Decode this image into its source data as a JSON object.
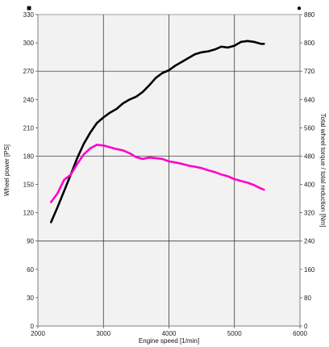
{
  "chart_data": {
    "type": "line",
    "title": "",
    "xlabel": "Engine speed [1/min]",
    "ylabel": "Wheel power [PS]",
    "y2label": "Total wheel torque / total reduction [Nm]",
    "xlim": [
      2000,
      6000
    ],
    "ylim": [
      0,
      330
    ],
    "y2lim": [
      0,
      880
    ],
    "xticks": [
      "2000",
      "3000",
      "4000",
      "5000",
      "6000"
    ],
    "yticks": [
      "0",
      "30",
      "60",
      "90",
      "120",
      "150",
      "180",
      "210",
      "240",
      "270",
      "300",
      "330"
    ],
    "y2ticks": [
      "0",
      "80",
      "160",
      "240",
      "320",
      "400",
      "480",
      "560",
      "640",
      "720",
      "800",
      "880"
    ],
    "grid": true,
    "legend": "none",
    "series": [
      {
        "axis": "left",
        "color": "#000000",
        "x": [
          2200,
          2300,
          2400,
          2500,
          2600,
          2700,
          2800,
          2900,
          3000,
          3100,
          3200,
          3300,
          3400,
          3500,
          3600,
          3700,
          3800,
          3900,
          4000,
          4100,
          4200,
          4300,
          4400,
          4500,
          4600,
          4700,
          4800,
          4900,
          5000,
          5100,
          5200,
          5300,
          5400,
          5450
        ],
        "values": [
          110,
          126,
          143,
          160,
          178,
          193,
          205,
          215,
          221,
          226,
          230,
          236,
          240,
          243,
          248,
          255,
          263,
          268,
          271,
          276,
          280,
          284,
          288,
          290,
          291,
          293,
          296,
          295,
          297,
          301,
          302,
          301,
          299,
          299
        ]
      },
      {
        "axis": "right",
        "color": "#ff00c8",
        "x": [
          2200,
          2300,
          2400,
          2500,
          2600,
          2700,
          2800,
          2900,
          3000,
          3100,
          3200,
          3300,
          3400,
          3500,
          3600,
          3700,
          3800,
          3900,
          4000,
          4100,
          4200,
          4300,
          4400,
          4500,
          4600,
          4700,
          4800,
          4900,
          5000,
          5100,
          5200,
          5300,
          5400,
          5450
        ],
        "values": [
          350,
          375,
          413,
          427,
          458,
          485,
          502,
          512,
          510,
          505,
          500,
          496,
          488,
          477,
          472,
          476,
          474,
          472,
          465,
          462,
          458,
          453,
          450,
          446,
          440,
          435,
          428,
          423,
          415,
          410,
          405,
          398,
          389,
          385
        ]
      }
    ]
  },
  "markers": {
    "left_top": "■",
    "right_top": "●"
  }
}
